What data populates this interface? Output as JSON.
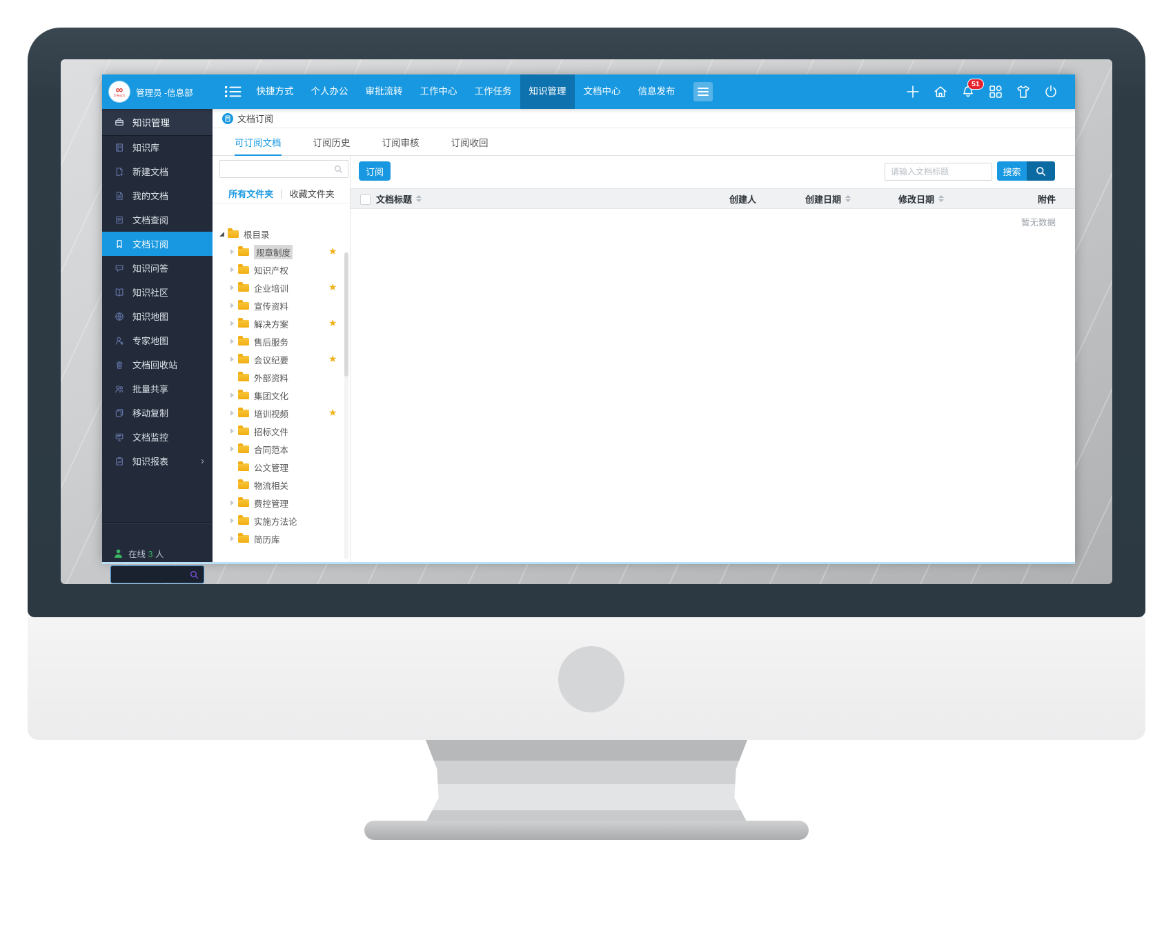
{
  "topbar": {
    "logo_symbol": "∞",
    "logo_caption": "华天动力",
    "user_label": "管理员 -信息部",
    "nav": [
      {
        "label": "快捷方式"
      },
      {
        "label": "个人办公"
      },
      {
        "label": "审批流转"
      },
      {
        "label": "工作中心"
      },
      {
        "label": "工作任务"
      },
      {
        "label": "知识管理",
        "active": true
      },
      {
        "label": "文档中心"
      },
      {
        "label": "信息发布"
      }
    ],
    "notification_count": "51",
    "action_icons": [
      {
        "name": "plus-icon"
      },
      {
        "name": "home-icon"
      },
      {
        "name": "bell-icon"
      },
      {
        "name": "apps-icon"
      },
      {
        "name": "shirt-icon"
      },
      {
        "name": "power-icon"
      }
    ]
  },
  "sidebar": {
    "items": [
      {
        "label": "知识管理",
        "icon": "briefcase-icon",
        "header": true
      },
      {
        "label": "知识库",
        "icon": "book-icon"
      },
      {
        "label": "新建文档",
        "icon": "doc-new-icon"
      },
      {
        "label": "我的文档",
        "icon": "doc-icon"
      },
      {
        "label": "文档查阅",
        "icon": "doc-search-icon"
      },
      {
        "label": "文档订阅",
        "icon": "bookmark-icon",
        "active": true
      },
      {
        "label": "知识问答",
        "icon": "chat-icon"
      },
      {
        "label": "知识社区",
        "icon": "book-open-icon"
      },
      {
        "label": "知识地图",
        "icon": "globe-icon"
      },
      {
        "label": "专家地图",
        "icon": "person-pin-icon"
      },
      {
        "label": "文档回收站",
        "icon": "trash-icon"
      },
      {
        "label": "批量共享",
        "icon": "people-icon"
      },
      {
        "label": "移动复制",
        "icon": "copy-icon"
      },
      {
        "label": "文档监控",
        "icon": "monitor-doc-icon"
      },
      {
        "label": "知识报表",
        "icon": "clipboard-chart-icon",
        "has_submenu": true
      }
    ],
    "online": {
      "prefix": "在线",
      "count": "3",
      "suffix": "人"
    },
    "search_value": ""
  },
  "breadcrumb": {
    "label": "文档订阅"
  },
  "content_tabs": [
    {
      "label": "可订阅文档",
      "active": true
    },
    {
      "label": "订阅历史"
    },
    {
      "label": "订阅审核"
    },
    {
      "label": "订阅收回"
    }
  ],
  "folders": {
    "search_value": "",
    "filter_tabs": [
      {
        "label": "所有文件夹",
        "active": true
      },
      {
        "label": "收藏文件夹"
      }
    ],
    "root": {
      "label": "根目录",
      "expanded": true
    },
    "items": [
      {
        "label": "规章制度",
        "expandable": true,
        "starred": true,
        "selected": true
      },
      {
        "label": "知识产权",
        "expandable": true
      },
      {
        "label": "企业培训",
        "expandable": true,
        "starred": true
      },
      {
        "label": "宣传资料",
        "expandable": true
      },
      {
        "label": "解决方案",
        "expandable": true,
        "starred": true
      },
      {
        "label": "售后服务",
        "expandable": true
      },
      {
        "label": "会议纪要",
        "expandable": true,
        "starred": true
      },
      {
        "label": "外部资料"
      },
      {
        "label": "集团文化",
        "expandable": true
      },
      {
        "label": "培训视频",
        "expandable": true,
        "starred": true
      },
      {
        "label": "招标文件",
        "expandable": true
      },
      {
        "label": "合同范本",
        "expandable": true
      },
      {
        "label": "公文管理"
      },
      {
        "label": "物流相关"
      },
      {
        "label": "费控管理",
        "expandable": true
      },
      {
        "label": "实施方法论",
        "expandable": true
      },
      {
        "label": "简历库",
        "expandable": true
      }
    ]
  },
  "table": {
    "subscribe_button": "订阅",
    "search_placeholder": "请输入文档标题",
    "search_button": "搜索",
    "columns": [
      {
        "label": "文档标题",
        "sortable": true
      },
      {
        "label": "创建人"
      },
      {
        "label": "创建日期",
        "sortable": true
      },
      {
        "label": "修改日期",
        "sortable": true
      },
      {
        "label": "附件"
      }
    ],
    "empty_text": "暂无数据"
  },
  "colors": {
    "accent": "#1898e0",
    "nav_active": "#0e72ae",
    "sidebar_bg": "#232b3a",
    "badge_red": "#e8212d",
    "star_yellow": "#f0b21c",
    "folder_yellow": "#f2ae12",
    "online_green": "#3db564",
    "frame_dark": "#2f3c46"
  }
}
